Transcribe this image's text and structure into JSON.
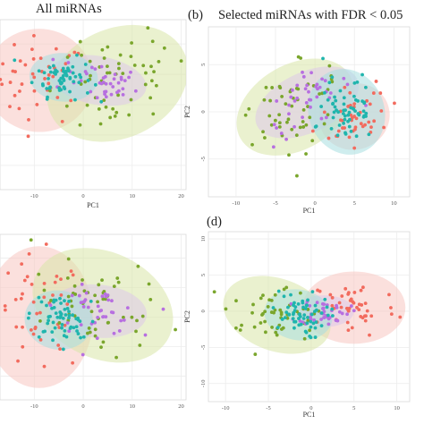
{
  "titles": {
    "a": "All miRNAs",
    "b_label": "(b)",
    "b": "Selected miRNAs with FDR < 0.05",
    "d_label": "(d)"
  },
  "colors": {
    "red": "#f26b5e",
    "teal": "#1fb5ad",
    "purple": "#b76fe0",
    "green": "#7aa62c",
    "ell_red": "#f7c6c1",
    "ell_teal": "#a8dfe0",
    "ell_purple": "#dcc8ea",
    "ell_green": "#d9e6a8"
  },
  "chart_data": [
    {
      "id": "a",
      "type": "scatter",
      "title": "All miRNAs",
      "xlabel": "PC1",
      "ylabel": "",
      "xlim": [
        -17,
        21
      ],
      "ylim": [
        -14,
        14
      ],
      "xticks": [
        -10,
        0,
        10,
        20
      ],
      "yticks": [],
      "grid": true,
      "series": [
        {
          "color": "red",
          "ellipse": {
            "cx": -9,
            "cy": 4,
            "rx": 11,
            "ry": 8.5,
            "angle": -5
          }
        },
        {
          "color": "teal",
          "ellipse": {
            "cx": -4,
            "cy": 4.5,
            "rx": 7,
            "ry": 4,
            "angle": -5
          }
        },
        {
          "color": "purple",
          "ellipse": {
            "cx": 3,
            "cy": 4,
            "rx": 10,
            "ry": 4,
            "angle": -10
          }
        },
        {
          "color": "green",
          "ellipse": {
            "cx": 7,
            "cy": 3.5,
            "rx": 15,
            "ry": 9,
            "angle": 25
          }
        }
      ]
    },
    {
      "id": "b",
      "type": "scatter",
      "title": "Selected miRNAs with FDR < 0.05",
      "xlabel": "PC1",
      "ylabel": "PC2",
      "xlim": [
        -13.5,
        12
      ],
      "ylim": [
        -9,
        9
      ],
      "xticks": [
        -10,
        -5,
        0,
        5,
        10
      ],
      "yticks": [
        -5,
        0,
        5
      ],
      "grid": true,
      "series": [
        {
          "color": "red",
          "ellipse": {
            "cx": 5,
            "cy": -0.5,
            "rx": 4.5,
            "ry": 3.5,
            "angle": 20
          }
        },
        {
          "color": "teal",
          "ellipse": {
            "cx": 4,
            "cy": 0,
            "rx": 4.8,
            "ry": 4.6,
            "angle": 20
          }
        },
        {
          "color": "purple",
          "ellipse": {
            "cx": -1,
            "cy": 1,
            "rx": 7,
            "ry": 3.2,
            "angle": 25
          }
        },
        {
          "color": "green",
          "ellipse": {
            "cx": -2.5,
            "cy": 0.5,
            "rx": 8,
            "ry": 4.5,
            "angle": 30
          }
        }
      ]
    },
    {
      "id": "c",
      "type": "scatter",
      "title": "",
      "xlabel": "",
      "ylabel": "",
      "xlim": [
        -17,
        21
      ],
      "ylim": [
        -14,
        14
      ],
      "xticks": [
        -10,
        0,
        10,
        20
      ],
      "yticks": [],
      "grid": true,
      "series": [
        {
          "color": "red",
          "ellipse": {
            "cx": -9,
            "cy": 0,
            "rx": 11,
            "ry": 12,
            "angle": 0
          }
        },
        {
          "color": "teal",
          "ellipse": {
            "cx": -5,
            "cy": -0.5,
            "rx": 7,
            "ry": 5,
            "angle": -10
          }
        },
        {
          "color": "purple",
          "ellipse": {
            "cx": 3,
            "cy": 1,
            "rx": 10,
            "ry": 4.5,
            "angle": -5
          }
        },
        {
          "color": "green",
          "ellipse": {
            "cx": 4,
            "cy": 2,
            "rx": 15,
            "ry": 9,
            "angle": -25
          }
        }
      ]
    },
    {
      "id": "d",
      "type": "scatter",
      "title": "",
      "xlabel": "PC1",
      "ylabel": "PC2",
      "xlim": [
        -12,
        11.5
      ],
      "ylim": [
        -12.5,
        11
      ],
      "xticks": [
        -10,
        -5,
        0,
        5,
        10
      ],
      "yticks": [
        -10,
        -5,
        0,
        5,
        10
      ],
      "grid": true,
      "series": [
        {
          "color": "red",
          "ellipse": {
            "cx": 5,
            "cy": 0.5,
            "rx": 6,
            "ry": 5,
            "angle": 0
          }
        },
        {
          "color": "teal",
          "ellipse": {
            "cx": -1.5,
            "cy": -0.5,
            "rx": 4,
            "ry": 3.5,
            "angle": -10
          }
        },
        {
          "color": "purple",
          "ellipse": {
            "cx": 1.5,
            "cy": 0,
            "rx": 3.5,
            "ry": 2.2,
            "angle": 0
          }
        },
        {
          "color": "green",
          "ellipse": {
            "cx": -4,
            "cy": -0.5,
            "rx": 6.5,
            "ry": 5,
            "angle": -20
          }
        }
      ]
    }
  ]
}
